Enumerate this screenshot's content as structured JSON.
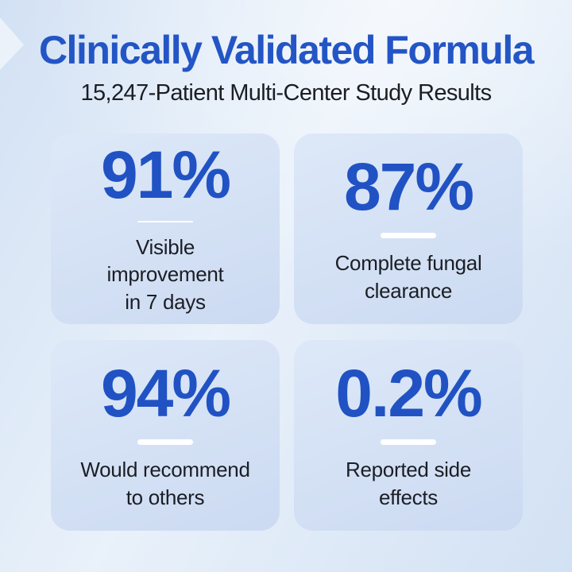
{
  "header": {
    "title": "Clinically Validated Formula",
    "subtitle": "15,247-Patient Multi-Center Study Results"
  },
  "stats": [
    {
      "value": "91%",
      "label": "Visible\nimprovement\nin 7 days"
    },
    {
      "value": "87%",
      "label": "Complete fungal\nclearance"
    },
    {
      "value": "94%",
      "label": "Would recommend\nto others"
    },
    {
      "value": "0.2%",
      "label": "Reported side\neffects"
    }
  ],
  "colors": {
    "title_blue": "#2355c5",
    "stat_blue": "#2152c4",
    "text_dark": "#1b1e24",
    "card_bg_top": "#dde9f8",
    "card_bg_bottom": "#ccdaf2",
    "bg_light": "#e9f1fa",
    "bg_shade": "#d2e1f4",
    "divider": "#ffffff"
  }
}
